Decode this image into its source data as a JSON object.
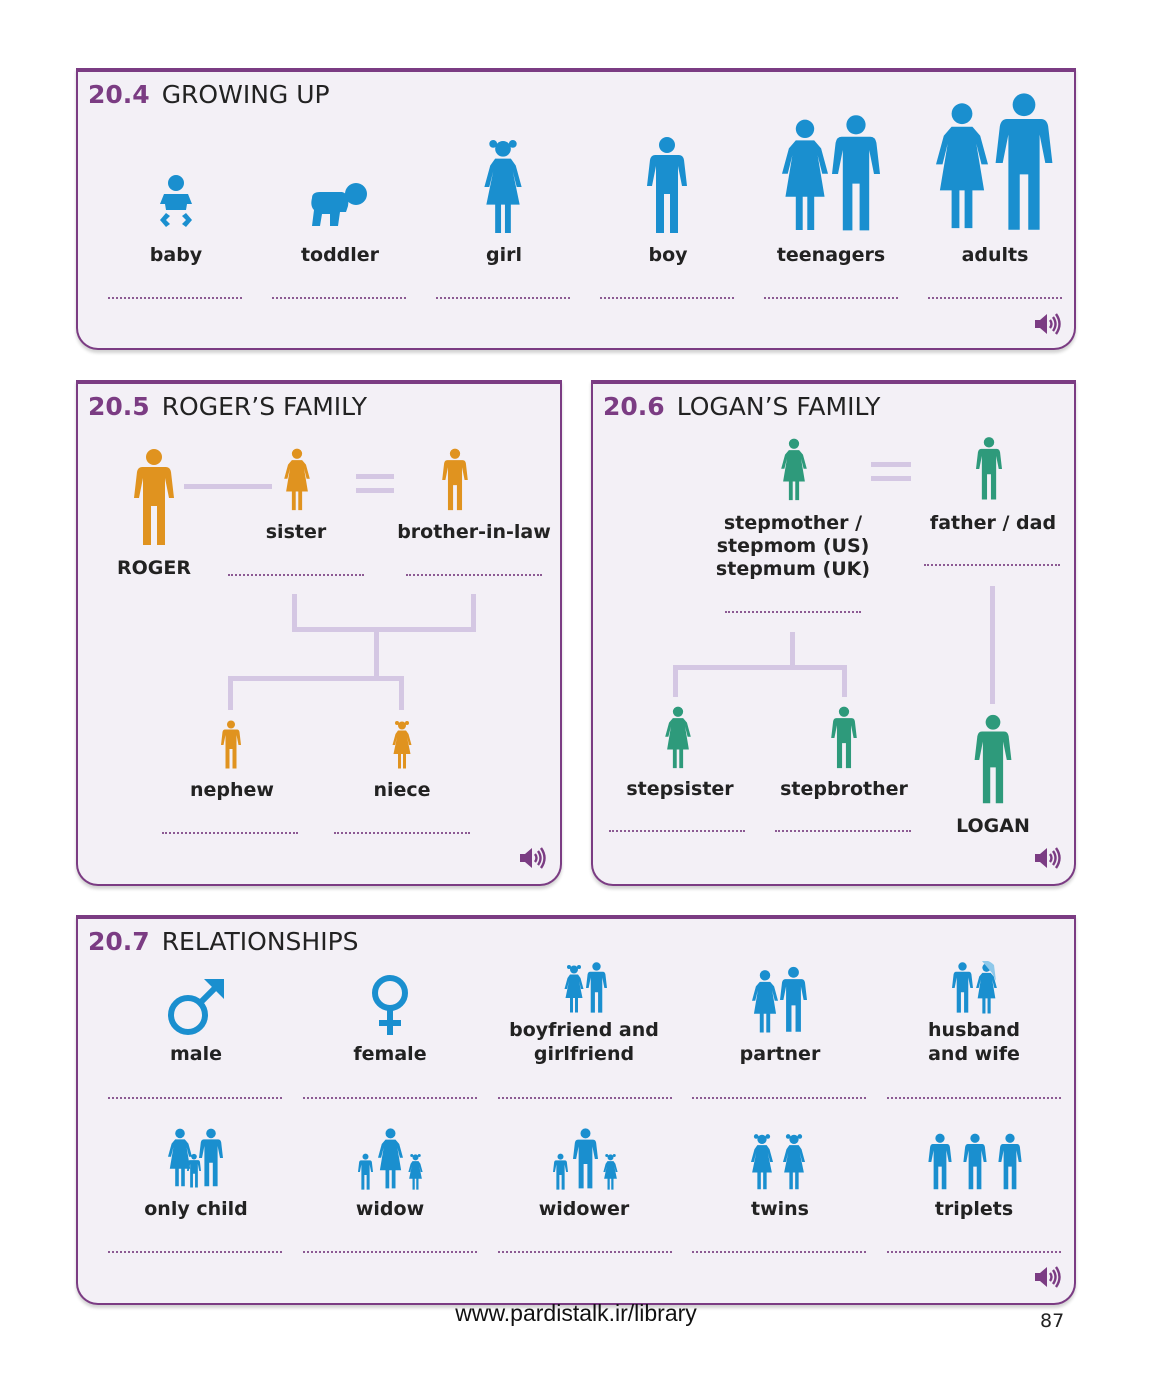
{
  "colors": {
    "accent": "#7b3c83",
    "blue": "#1a8fcf",
    "orange": "#e0931f",
    "green": "#2e9a7b",
    "connector": "#d4c7e3"
  },
  "section_20_4": {
    "number": "20.4",
    "title": "GROWING UP",
    "items": [
      {
        "label": "baby",
        "icon": "baby-icon"
      },
      {
        "label": "toddler",
        "icon": "toddler-icon"
      },
      {
        "label": "girl",
        "icon": "girl-icon"
      },
      {
        "label": "boy",
        "icon": "boy-icon"
      },
      {
        "label": "teenagers",
        "icon": "teenagers-icon"
      },
      {
        "label": "adults",
        "icon": "adults-icon"
      }
    ]
  },
  "section_20_5": {
    "number": "20.5",
    "title": "ROGER’S FAMILY",
    "roger": "ROGER",
    "sister": "sister",
    "brother_in_law": "brother-in-law",
    "nephew": "nephew",
    "niece": "niece"
  },
  "section_20_6": {
    "number": "20.6",
    "title": "LOGAN’S FAMILY",
    "stepmother_lines": [
      "stepmother /",
      "stepmom (US)",
      "stepmum (UK)"
    ],
    "father": "father / dad",
    "stepsister": "stepsister",
    "stepbrother": "stepbrother",
    "logan": "LOGAN"
  },
  "section_20_7": {
    "number": "20.7",
    "title": "RELATIONSHIPS",
    "row1": [
      {
        "lines": [
          "male"
        ],
        "icon": "male-symbol-icon"
      },
      {
        "lines": [
          "female"
        ],
        "icon": "female-symbol-icon"
      },
      {
        "lines": [
          "boyfriend and",
          "girlfriend"
        ],
        "icon": "couple-icon"
      },
      {
        "lines": [
          "partner"
        ],
        "icon": "partner-icon"
      },
      {
        "lines": [
          "husband",
          "and wife"
        ],
        "icon": "wedding-couple-icon"
      }
    ],
    "row2": [
      {
        "lines": [
          "only child"
        ],
        "icon": "only-child-icon"
      },
      {
        "lines": [
          "widow"
        ],
        "icon": "widow-icon"
      },
      {
        "lines": [
          "widower"
        ],
        "icon": "widower-icon"
      },
      {
        "lines": [
          "twins"
        ],
        "icon": "twins-icon"
      },
      {
        "lines": [
          "triplets"
        ],
        "icon": "triplets-icon"
      }
    ]
  },
  "footer": {
    "url": "www.pardistalk.ir/library",
    "page_number": "87"
  }
}
